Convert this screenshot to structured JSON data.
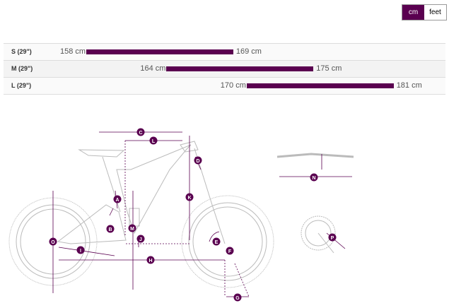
{
  "units": {
    "options": [
      "cm",
      "feet"
    ],
    "selected": "cm"
  },
  "sizes": [
    {
      "label": "S (29\")",
      "min": 158,
      "max": 169,
      "min_text": "158 cm",
      "max_text": "169 cm"
    },
    {
      "label": "M (29\")",
      "min": 164,
      "max": 175,
      "min_text": "164 cm",
      "max_text": "175 cm"
    },
    {
      "label": "L (29\")",
      "min": 170,
      "max": 181,
      "min_text": "170 cm",
      "max_text": "181 cm"
    }
  ],
  "colors": {
    "accent": "#5a0050",
    "line": "#bbbbbb"
  },
  "diagram": {
    "labels": {
      "A": "A",
      "B": "B",
      "C": "C",
      "D": "D",
      "E": "E",
      "F": "F",
      "G": "G",
      "H": "H",
      "I": "I",
      "J": "J",
      "K": "K",
      "L": "L",
      "M": "M",
      "N": "N",
      "O": "O",
      "P": "P"
    }
  }
}
